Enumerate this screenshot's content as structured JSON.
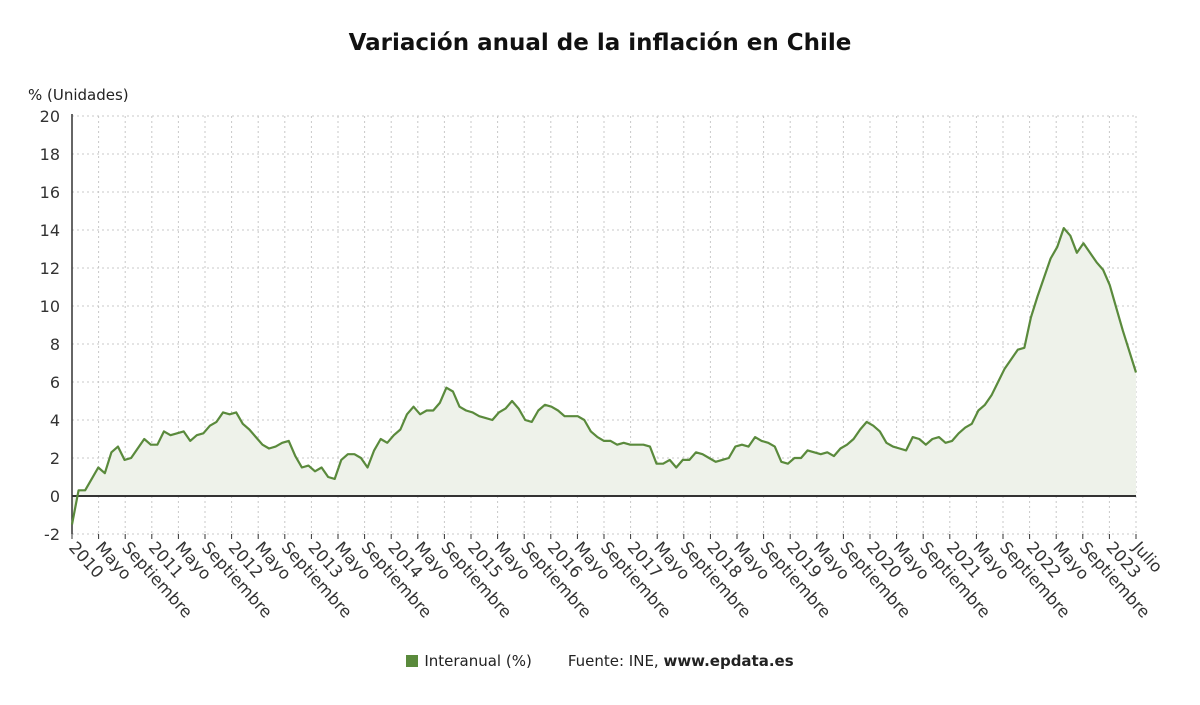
{
  "chart_data": {
    "type": "area",
    "title": "Variación anual de la inflación en Chile",
    "ylabel": "% (Unidades)",
    "xlabel": "",
    "ylim": [
      -2,
      20
    ],
    "yticks": [
      -2,
      0,
      2,
      4,
      6,
      8,
      10,
      12,
      14,
      16,
      18,
      20
    ],
    "grid": true,
    "colors": {
      "line": "#5a8a3c",
      "fill": "#eef2ea",
      "grid": "#c8c8c8",
      "zero": "#333333"
    },
    "x_labels": [
      "2010",
      "Mayo",
      "Septiembre",
      "2011",
      "Mayo",
      "Septiembre",
      "2012",
      "Mayo",
      "Septiembre",
      "2013",
      "Mayo",
      "Septiembre",
      "2014",
      "Mayo",
      "Septiembre",
      "2015",
      "Mayo",
      "Septiembre",
      "2016",
      "Mayo",
      "Septiembre",
      "2017",
      "Mayo",
      "Septiembre",
      "2018",
      "Mayo",
      "Septiembre",
      "2019",
      "Mayo",
      "Septiembre",
      "2020",
      "Mayo",
      "Septiembre",
      "2021",
      "Mayo",
      "Septiembre",
      "2022",
      "Mayo",
      "Septiembre",
      "2023",
      "Julio"
    ],
    "x_start": "2010-01",
    "x_end": "2023-07",
    "series": [
      {
        "name": "Interanual (%)",
        "values": [
          -1.5,
          0.3,
          0.3,
          0.9,
          1.5,
          1.2,
          2.3,
          2.6,
          1.9,
          2.0,
          2.5,
          3.0,
          2.7,
          2.7,
          3.4,
          3.2,
          3.3,
          3.4,
          2.9,
          3.2,
          3.3,
          3.7,
          3.9,
          4.4,
          4.3,
          4.4,
          3.8,
          3.5,
          3.1,
          2.7,
          2.5,
          2.6,
          2.8,
          2.9,
          2.1,
          1.5,
          1.6,
          1.3,
          1.5,
          1.0,
          0.9,
          1.9,
          2.2,
          2.2,
          2.0,
          1.5,
          2.4,
          3.0,
          2.8,
          3.2,
          3.5,
          4.3,
          4.7,
          4.3,
          4.5,
          4.5,
          4.9,
          5.7,
          5.5,
          4.7,
          4.5,
          4.4,
          4.2,
          4.1,
          4.0,
          4.4,
          4.6,
          5.0,
          4.6,
          4.0,
          3.9,
          4.5,
          4.8,
          4.7,
          4.5,
          4.2,
          4.2,
          4.2,
          4.0,
          3.4,
          3.1,
          2.9,
          2.9,
          2.7,
          2.8,
          2.7,
          2.7,
          2.7,
          2.6,
          1.7,
          1.7,
          1.9,
          1.5,
          1.9,
          1.9,
          2.3,
          2.2,
          2.0,
          1.8,
          1.9,
          2.0,
          2.6,
          2.7,
          2.6,
          3.1,
          2.9,
          2.8,
          2.6,
          1.8,
          1.7,
          2.0,
          2.0,
          2.4,
          2.3,
          2.2,
          2.3,
          2.1,
          2.5,
          2.7,
          3.0,
          3.5,
          3.9,
          3.7,
          3.4,
          2.8,
          2.6,
          2.5,
          2.4,
          3.1,
          3.0,
          2.7,
          3.0,
          3.1,
          2.8,
          2.9,
          3.3,
          3.6,
          3.8,
          4.5,
          4.8,
          5.3,
          6.0,
          6.7,
          7.2,
          7.7,
          7.8,
          9.4,
          10.5,
          11.5,
          12.5,
          13.1,
          14.1,
          13.7,
          12.8,
          13.3,
          12.8,
          12.3,
          11.9,
          11.1,
          9.9,
          8.7,
          7.6,
          6.5
        ]
      }
    ]
  },
  "legend": {
    "label": "Interanual (%)",
    "color": "#5a8a3c"
  },
  "source": {
    "prefix": "Fuente: INE, ",
    "site": "www.epdata.es"
  }
}
